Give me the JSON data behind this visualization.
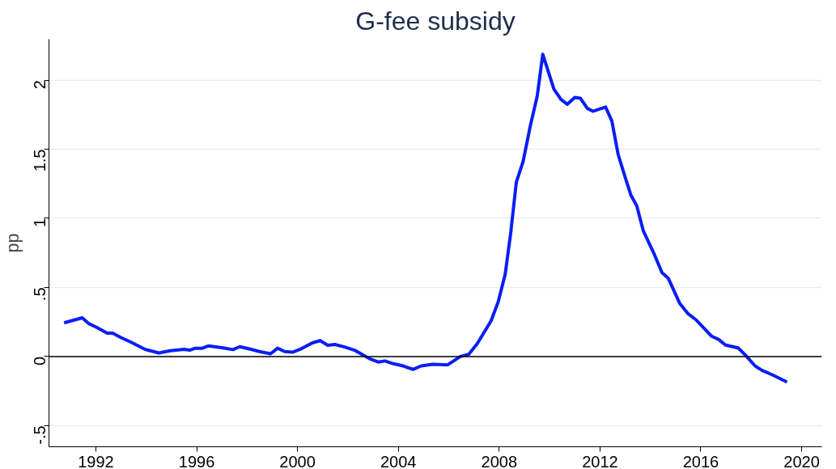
{
  "chart_data": {
    "type": "line",
    "title": "G-fee subsidy",
    "ylabel": "pp",
    "x": [
      1990.74,
      1991.46,
      1991.73,
      1992.01,
      1992.45,
      1992.67,
      1993.0,
      1993.4,
      1993.95,
      1994.5,
      1994.95,
      1995.5,
      1995.72,
      1995.94,
      1996.22,
      1996.47,
      1997.05,
      1997.44,
      1997.71,
      1998.16,
      1998.49,
      1998.93,
      1999.21,
      1999.49,
      1999.82,
      2000.15,
      2000.59,
      2000.9,
      2001.2,
      2001.48,
      2001.87,
      2002.26,
      2002.53,
      2002.86,
      2003.2,
      2003.47,
      2003.8,
      2004.19,
      2004.58,
      2004.91,
      2005.36,
      2005.96,
      2006.46,
      2006.79,
      2007.13,
      2007.68,
      2007.96,
      2008.24,
      2008.46,
      2008.68,
      2008.95,
      2009.23,
      2009.51,
      2009.73,
      2010.17,
      2010.45,
      2010.7,
      2011.0,
      2011.22,
      2011.5,
      2011.72,
      2012.22,
      2012.47,
      2012.72,
      2012.94,
      2013.22,
      2013.46,
      2013.72,
      2014.16,
      2014.46,
      2014.71,
      2015.16,
      2015.49,
      2015.82,
      2016.43,
      2016.71,
      2016.98,
      2017.48,
      2017.76,
      2018.15,
      2018.42,
      2018.87,
      2019.42
    ],
    "series": [
      {
        "color": "#0a1ef5",
        "values": [
          0.244,
          0.28,
          0.237,
          0.213,
          0.169,
          0.169,
          0.137,
          0.103,
          0.052,
          0.026,
          0.042,
          0.052,
          0.046,
          0.06,
          0.06,
          0.077,
          0.062,
          0.05,
          0.071,
          0.052,
          0.036,
          0.02,
          0.06,
          0.036,
          0.032,
          0.056,
          0.099,
          0.115,
          0.081,
          0.087,
          0.069,
          0.046,
          0.018,
          -0.016,
          -0.04,
          -0.032,
          -0.052,
          -0.068,
          -0.093,
          -0.068,
          -0.056,
          -0.06,
          0.0,
          0.016,
          0.093,
          0.258,
          0.395,
          0.596,
          0.898,
          1.261,
          1.412,
          1.664,
          1.885,
          2.187,
          1.935,
          1.861,
          1.825,
          1.875,
          1.869,
          1.795,
          1.775,
          1.805,
          1.704,
          1.462,
          1.331,
          1.17,
          1.089,
          0.908,
          0.737,
          0.606,
          0.566,
          0.385,
          0.31,
          0.264,
          0.147,
          0.123,
          0.083,
          0.062,
          0.012,
          -0.068,
          -0.099,
          -0.135,
          -0.185
        ]
      }
    ],
    "xlim": [
      1990.14,
      2020.8
    ],
    "ylim": [
      -0.653,
      2.296
    ],
    "xticks": [
      1992,
      1996,
      2000,
      2004,
      2008,
      2012,
      2016,
      2020
    ],
    "yticks": [
      {
        "value": -0.5,
        "label": "-.5"
      },
      0,
      {
        "value": 0.5,
        "label": ".5"
      },
      1,
      1.5,
      2
    ],
    "ref_lines": [
      {
        "axis": "y",
        "value": 0,
        "color": "#000000"
      }
    ],
    "grid": "y",
    "marker": "none",
    "line_style": "solid"
  }
}
